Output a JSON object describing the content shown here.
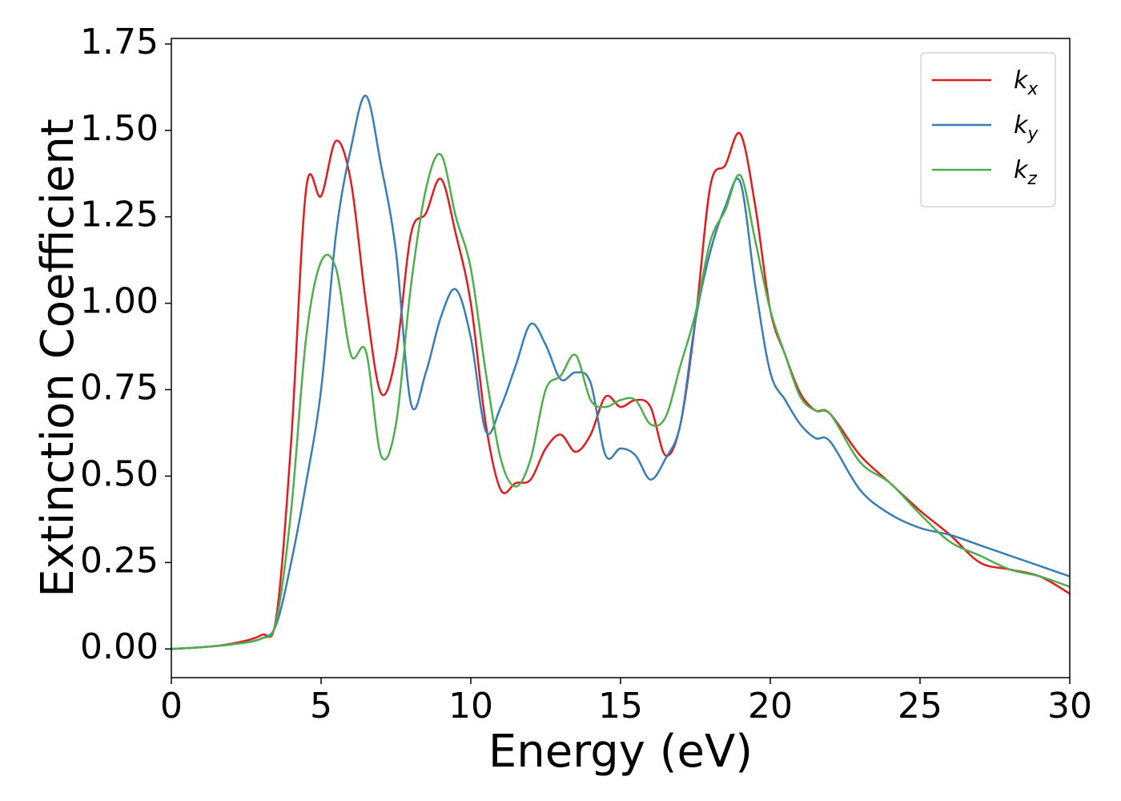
{
  "chart_data": {
    "type": "line",
    "xlabel": "Energy (eV)",
    "ylabel": "Extinction Coefficient",
    "x": [
      0,
      1,
      2,
      3,
      3.5,
      4,
      4.5,
      5,
      5.5,
      6,
      6.5,
      7,
      7.5,
      8,
      8.5,
      9,
      9.5,
      10,
      10.5,
      11,
      11.5,
      12,
      12.5,
      13,
      13.5,
      14,
      14.5,
      15,
      15.5,
      16,
      16.5,
      17,
      17.5,
      18,
      18.5,
      19,
      19.5,
      20,
      20.5,
      21,
      21.5,
      22,
      23,
      24,
      25,
      26,
      27,
      28,
      29,
      30
    ],
    "series": [
      {
        "name": "kx",
        "color": "#e41a1c",
        "values": [
          0,
          0.005,
          0.015,
          0.04,
          0.09,
          0.6,
          1.33,
          1.31,
          1.47,
          1.35,
          1.0,
          0.74,
          0.85,
          1.2,
          1.26,
          1.36,
          1.2,
          1.0,
          0.65,
          0.46,
          0.48,
          0.49,
          0.58,
          0.62,
          0.57,
          0.62,
          0.73,
          0.7,
          0.72,
          0.7,
          0.56,
          0.65,
          0.95,
          1.34,
          1.4,
          1.49,
          1.28,
          0.98,
          0.85,
          0.74,
          0.69,
          0.68,
          0.56,
          0.48,
          0.4,
          0.33,
          0.25,
          0.23,
          0.21,
          0.16
        ]
      },
      {
        "name": "ky",
        "color": "#377eb8",
        "values": [
          0,
          0.005,
          0.013,
          0.03,
          0.07,
          0.25,
          0.48,
          0.75,
          1.2,
          1.45,
          1.6,
          1.4,
          1.15,
          0.71,
          0.8,
          0.96,
          1.04,
          0.9,
          0.63,
          0.7,
          0.82,
          0.94,
          0.88,
          0.78,
          0.8,
          0.77,
          0.56,
          0.58,
          0.56,
          0.49,
          0.55,
          0.65,
          0.95,
          1.15,
          1.28,
          1.35,
          1.05,
          0.8,
          0.72,
          0.65,
          0.61,
          0.6,
          0.46,
          0.39,
          0.35,
          0.33,
          0.3,
          0.27,
          0.24,
          0.21
        ]
      },
      {
        "name": "kz",
        "color": "#4daf4a",
        "values": [
          0,
          0.005,
          0.013,
          0.03,
          0.08,
          0.4,
          0.9,
          1.12,
          1.1,
          0.85,
          0.86,
          0.56,
          0.65,
          1.05,
          1.33,
          1.43,
          1.25,
          1.1,
          0.8,
          0.55,
          0.47,
          0.55,
          0.75,
          0.79,
          0.85,
          0.72,
          0.7,
          0.72,
          0.72,
          0.65,
          0.67,
          0.82,
          0.97,
          1.18,
          1.27,
          1.37,
          1.18,
          0.98,
          0.85,
          0.73,
          0.69,
          0.68,
          0.54,
          0.48,
          0.39,
          0.31,
          0.27,
          0.23,
          0.21,
          0.18
        ]
      }
    ],
    "xlim": [
      0,
      30
    ],
    "xticks": [
      0,
      5,
      10,
      15,
      20,
      25,
      30
    ],
    "ylim": [
      -0.083,
      1.766
    ],
    "yticks": [
      {
        "value": 0,
        "label": "0.00"
      },
      {
        "value": 0.25,
        "label": "0.25"
      },
      {
        "value": 0.5,
        "label": "0.50"
      },
      {
        "value": 0.75,
        "label": "0.75"
      },
      {
        "value": 1,
        "label": "1.00"
      },
      {
        "value": 1.25,
        "label": "1.25"
      },
      {
        "value": 1.5,
        "label": "1.50"
      },
      {
        "value": 1.75,
        "label": "1.75"
      }
    ],
    "grid": false,
    "legend": "upper right"
  }
}
